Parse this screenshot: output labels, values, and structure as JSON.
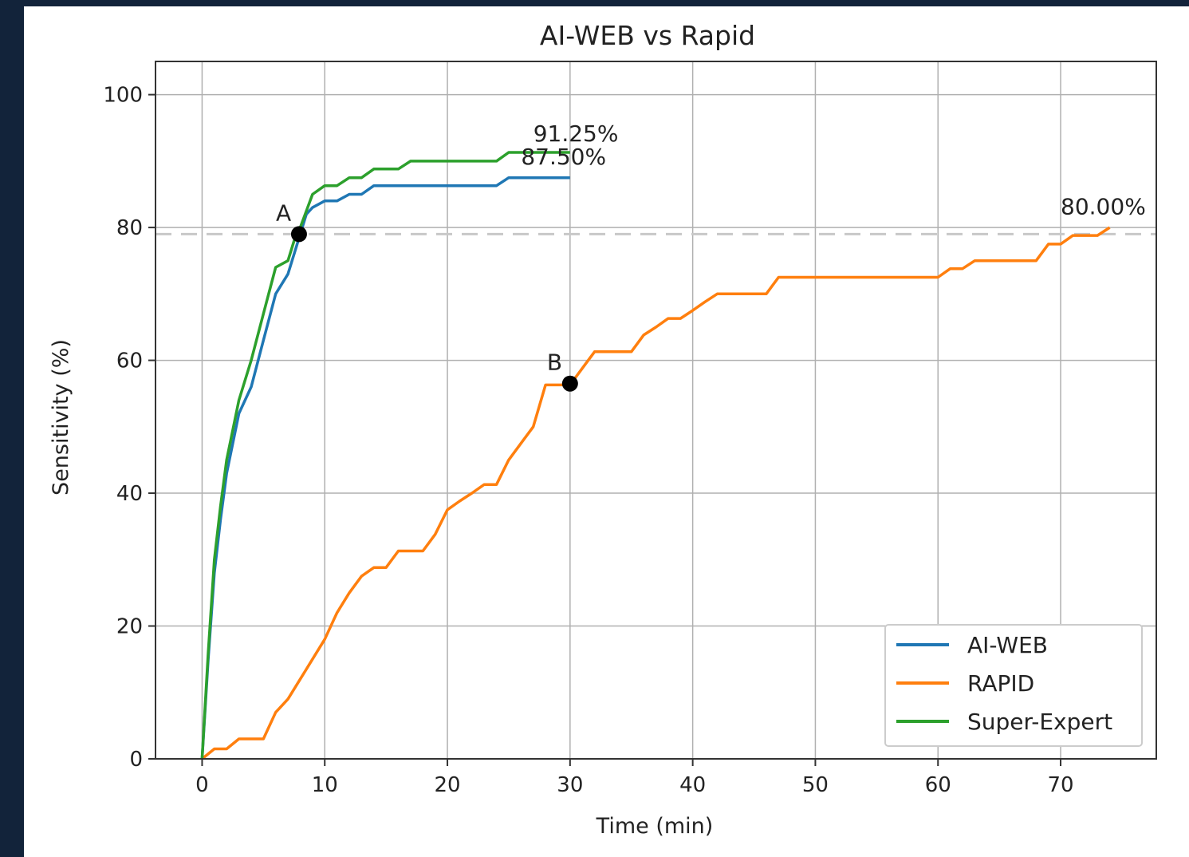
{
  "chart_data": {
    "type": "line",
    "title": "AI-WEB vs Rapid",
    "xlabel": "Time (min)",
    "ylabel": "Sensitivity (%)",
    "xlim": [
      -3.8,
      77.8
    ],
    "ylim": [
      0,
      105
    ],
    "xticks": [
      0,
      10,
      20,
      30,
      40,
      50,
      60,
      70
    ],
    "yticks": [
      0,
      20,
      40,
      60,
      80,
      100
    ],
    "grid": true,
    "legend_position": "lower-right",
    "reference_line": {
      "y": 79,
      "style": "dashed",
      "color": "#c8c8c8"
    },
    "series": [
      {
        "name": "AI-WEB",
        "color": "#1f77b4",
        "x": [
          0,
          0.5,
          1,
          1.5,
          2,
          3,
          4,
          5,
          6,
          7,
          7.5,
          8,
          8.5,
          9,
          10,
          11,
          12,
          13,
          14,
          15,
          16,
          17,
          18,
          19,
          20,
          21,
          22,
          23,
          24,
          25,
          26,
          27,
          28,
          29,
          30
        ],
        "y": [
          0,
          15,
          28,
          36,
          43,
          52,
          56,
          63,
          70,
          73,
          76,
          79,
          82,
          83,
          84,
          84,
          85,
          85,
          86.3,
          86.3,
          86.3,
          86.3,
          86.3,
          86.3,
          86.3,
          86.3,
          86.3,
          86.3,
          86.3,
          87.5,
          87.5,
          87.5,
          87.5,
          87.5,
          87.5
        ]
      },
      {
        "name": "RAPID",
        "color": "#ff7f0e",
        "x": [
          0,
          1,
          2,
          3,
          4,
          5,
          6,
          7,
          8,
          9,
          10,
          11,
          12,
          13,
          14,
          15,
          16,
          17,
          18,
          19,
          20,
          21,
          22,
          23,
          24,
          25,
          26,
          27,
          28,
          29,
          30,
          31,
          32,
          33,
          34,
          35,
          36,
          37,
          38,
          39,
          40,
          41,
          42,
          43,
          44,
          45,
          46,
          47,
          48,
          50,
          55,
          60,
          61,
          62,
          63,
          64,
          65,
          66,
          67,
          68,
          69,
          70,
          71,
          72,
          73,
          74
        ],
        "y": [
          0,
          1.5,
          1.5,
          3,
          3,
          3,
          7,
          9,
          12,
          15,
          18,
          22,
          25,
          27.5,
          28.8,
          28.8,
          31.3,
          31.3,
          31.3,
          33.8,
          37.5,
          38.8,
          40,
          41.3,
          41.3,
          45,
          47.5,
          50,
          56.3,
          56.3,
          56.3,
          58.8,
          61.3,
          61.3,
          61.3,
          61.3,
          63.8,
          65,
          66.3,
          66.3,
          67.5,
          68.8,
          70,
          70,
          70,
          70,
          70,
          72.5,
          72.5,
          72.5,
          72.5,
          72.5,
          73.8,
          73.8,
          75,
          75,
          75,
          75,
          75,
          75,
          77.5,
          77.5,
          78.8,
          78.8,
          78.8,
          80
        ]
      },
      {
        "name": "Super-Expert",
        "color": "#2ca02c",
        "x": [
          0,
          0.5,
          1,
          1.5,
          2,
          3,
          4,
          5,
          6,
          7,
          7.5,
          8,
          8.5,
          9,
          10,
          11,
          12,
          13,
          14,
          15,
          16,
          17,
          18,
          19,
          20,
          21,
          22,
          23,
          24,
          25,
          26,
          27,
          28,
          29,
          30
        ],
        "y": [
          0,
          16,
          30,
          38,
          45,
          54,
          60,
          67,
          74,
          75,
          78,
          80,
          82.5,
          85,
          86.3,
          86.3,
          87.5,
          87.5,
          88.8,
          88.8,
          88.8,
          90,
          90,
          90,
          90,
          90,
          90,
          90,
          90,
          91.3,
          91.3,
          91.3,
          91.3,
          91.3,
          91.3
        ]
      }
    ],
    "points": [
      {
        "label": "A",
        "x": 7.9,
        "y": 79
      },
      {
        "label": "B",
        "x": 30,
        "y": 56.5
      }
    ],
    "annotations": [
      {
        "text": "91.25%",
        "x": 27,
        "y": 93
      },
      {
        "text": "87.50%",
        "x": 26,
        "y": 89.5
      },
      {
        "text": "80.00%",
        "x": 70,
        "y": 82
      }
    ]
  }
}
